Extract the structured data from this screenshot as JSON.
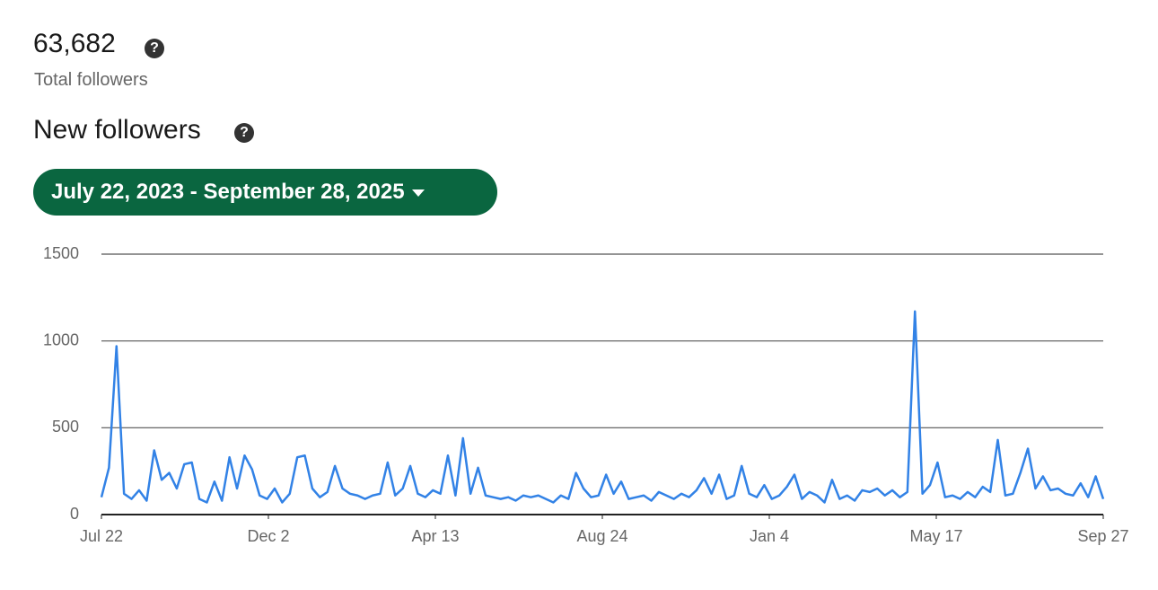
{
  "header": {
    "total": "63,682",
    "total_label": "Total followers",
    "section_title": "New followers",
    "date_range": "July 22, 2023 - September 28, 2025"
  },
  "chart_data": {
    "type": "line",
    "x": [
      0,
      6,
      12,
      18,
      24,
      30,
      36,
      42,
      48,
      54,
      60,
      66,
      72,
      78,
      84,
      90,
      96,
      102,
      108,
      114,
      120,
      126,
      132,
      138,
      144,
      150,
      156,
      162,
      168,
      174,
      180,
      186,
      192,
      198,
      204,
      210,
      216,
      222,
      228,
      234,
      240,
      246,
      252,
      258,
      264,
      270,
      276,
      282,
      288,
      294,
      300,
      306,
      312,
      318,
      324,
      330,
      336,
      342,
      348,
      354,
      360,
      366,
      372,
      378,
      384,
      390,
      396,
      402,
      408,
      414,
      420,
      426,
      432,
      438,
      444,
      450,
      456,
      462,
      468,
      474,
      480,
      486,
      492,
      498,
      504,
      510,
      516,
      522,
      528,
      534,
      540,
      546,
      552,
      558,
      564,
      570,
      576,
      582,
      588,
      594,
      600,
      606,
      612,
      618,
      624,
      630,
      636,
      642,
      648,
      654,
      660,
      666,
      672,
      678,
      684,
      690,
      696,
      702,
      708,
      714,
      720,
      726,
      732,
      738,
      744,
      750,
      756,
      762,
      768,
      774,
      780,
      786,
      792,
      798
    ],
    "series": [
      {
        "color": "#3282e6",
        "values": [
          100,
          270,
          970,
          120,
          90,
          140,
          80,
          370,
          200,
          240,
          150,
          290,
          300,
          90,
          70,
          190,
          80,
          330,
          150,
          340,
          260,
          110,
          90,
          150,
          70,
          120,
          330,
          340,
          150,
          100,
          130,
          280,
          150,
          120,
          110,
          90,
          110,
          120,
          300,
          110,
          150,
          280,
          120,
          100,
          140,
          120,
          340,
          110,
          440,
          120,
          270,
          110,
          100,
          90,
          100,
          80,
          110,
          100,
          110,
          90,
          70,
          110,
          90,
          240,
          150,
          100,
          110,
          230,
          120,
          190,
          90,
          100,
          110,
          80,
          130,
          110,
          90,
          120,
          100,
          140,
          210,
          120,
          230,
          90,
          110,
          280,
          120,
          100,
          170,
          90,
          110,
          160,
          230,
          90,
          130,
          110,
          70,
          200,
          90,
          110,
          80,
          140,
          130,
          150,
          110,
          140,
          100,
          130,
          1170,
          120,
          170,
          300,
          100,
          110,
          90,
          130,
          100,
          160,
          130,
          430,
          110,
          120,
          240,
          380,
          150,
          220,
          140,
          150,
          120,
          110,
          180,
          100,
          220,
          90
        ]
      }
    ],
    "xlim": [
      0,
      798
    ],
    "xticks": [
      {
        "value": 0,
        "label": "Jul 22"
      },
      {
        "value": 133,
        "label": "Dec 2"
      },
      {
        "value": 266,
        "label": "Apr 13"
      },
      {
        "value": 399,
        "label": "Aug 24"
      },
      {
        "value": 532,
        "label": "Jan 4"
      },
      {
        "value": 665,
        "label": "May 17"
      },
      {
        "value": 798,
        "label": "Sep 27"
      }
    ],
    "ylim": [
      0,
      1500
    ],
    "yticks": [
      0,
      500,
      1000,
      1500
    ],
    "grid": true
  }
}
